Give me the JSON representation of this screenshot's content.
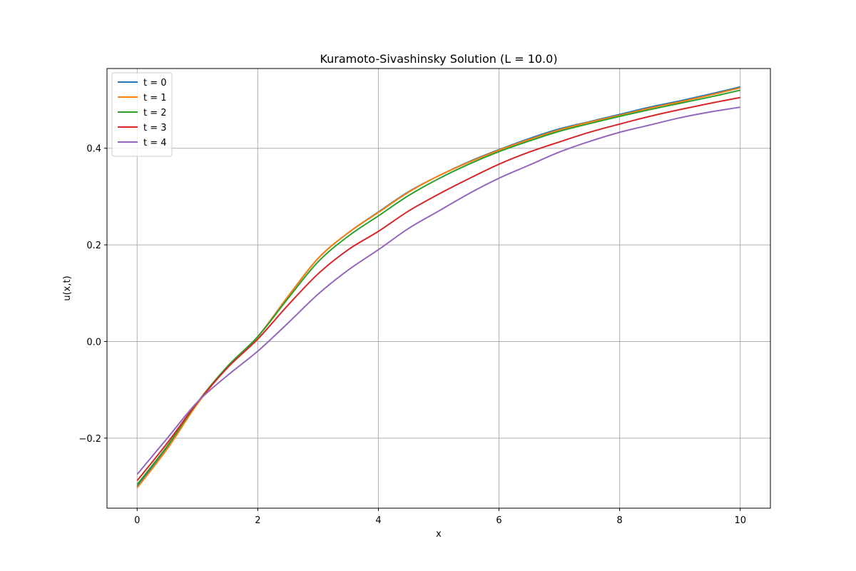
{
  "chart_data": {
    "type": "line",
    "title": "Kuramoto-Sivashinsky Solution (L = 10.0)",
    "xlabel": "x",
    "ylabel": "u(x,t)",
    "xlim": [
      -0.5,
      10.5
    ],
    "ylim": [
      -0.345,
      0.565
    ],
    "xticks": [
      0,
      2,
      4,
      6,
      8,
      10
    ],
    "xtick_labels": [
      "0",
      "2",
      "4",
      "6",
      "8",
      "10"
    ],
    "yticks": [
      -0.2,
      0.0,
      0.2,
      0.4
    ],
    "ytick_labels": [
      "−0.2",
      "0.0",
      "0.2",
      "0.4"
    ],
    "grid": true,
    "legend_position": "top-left",
    "x": [
      0,
      0.5,
      1,
      1.5,
      2,
      2.5,
      3,
      3.5,
      4,
      4.5,
      5,
      5.5,
      6,
      6.5,
      7,
      7.5,
      8,
      8.5,
      9,
      9.5,
      10
    ],
    "series": [
      {
        "name": "t = 0",
        "color": "#1f77b4",
        "values": [
          -0.3,
          -0.22,
          -0.128,
          -0.052,
          0.01,
          0.093,
          0.172,
          0.225,
          0.268,
          0.31,
          0.343,
          0.372,
          0.397,
          0.42,
          0.44,
          0.455,
          0.47,
          0.485,
          0.498,
          0.512,
          0.527
        ]
      },
      {
        "name": "t = 1",
        "color": "#ff7f0e",
        "values": [
          -0.303,
          -0.222,
          -0.129,
          -0.053,
          0.01,
          0.093,
          0.172,
          0.225,
          0.267,
          0.309,
          0.343,
          0.371,
          0.396,
          0.418,
          0.438,
          0.454,
          0.468,
          0.483,
          0.496,
          0.51,
          0.525
        ]
      },
      {
        "name": "t = 2",
        "color": "#2ca02c",
        "values": [
          -0.296,
          -0.216,
          -0.126,
          -0.051,
          0.01,
          0.089,
          0.165,
          0.218,
          0.26,
          0.302,
          0.337,
          0.367,
          0.393,
          0.415,
          0.435,
          0.451,
          0.466,
          0.48,
          0.493,
          0.506,
          0.52
        ]
      },
      {
        "name": "t = 3",
        "color": "#d62728",
        "values": [
          -0.288,
          -0.21,
          -0.126,
          -0.054,
          0.005,
          0.075,
          0.14,
          0.19,
          0.228,
          0.27,
          0.305,
          0.337,
          0.367,
          0.392,
          0.413,
          0.433,
          0.45,
          0.466,
          0.48,
          0.493,
          0.505
        ]
      },
      {
        "name": "t = 4",
        "color": "#9467bd",
        "values": [
          -0.275,
          -0.2,
          -0.125,
          -0.07,
          -0.02,
          0.038,
          0.098,
          0.148,
          0.19,
          0.234,
          0.27,
          0.306,
          0.338,
          0.365,
          0.392,
          0.414,
          0.433,
          0.448,
          0.463,
          0.475,
          0.485
        ]
      }
    ]
  }
}
